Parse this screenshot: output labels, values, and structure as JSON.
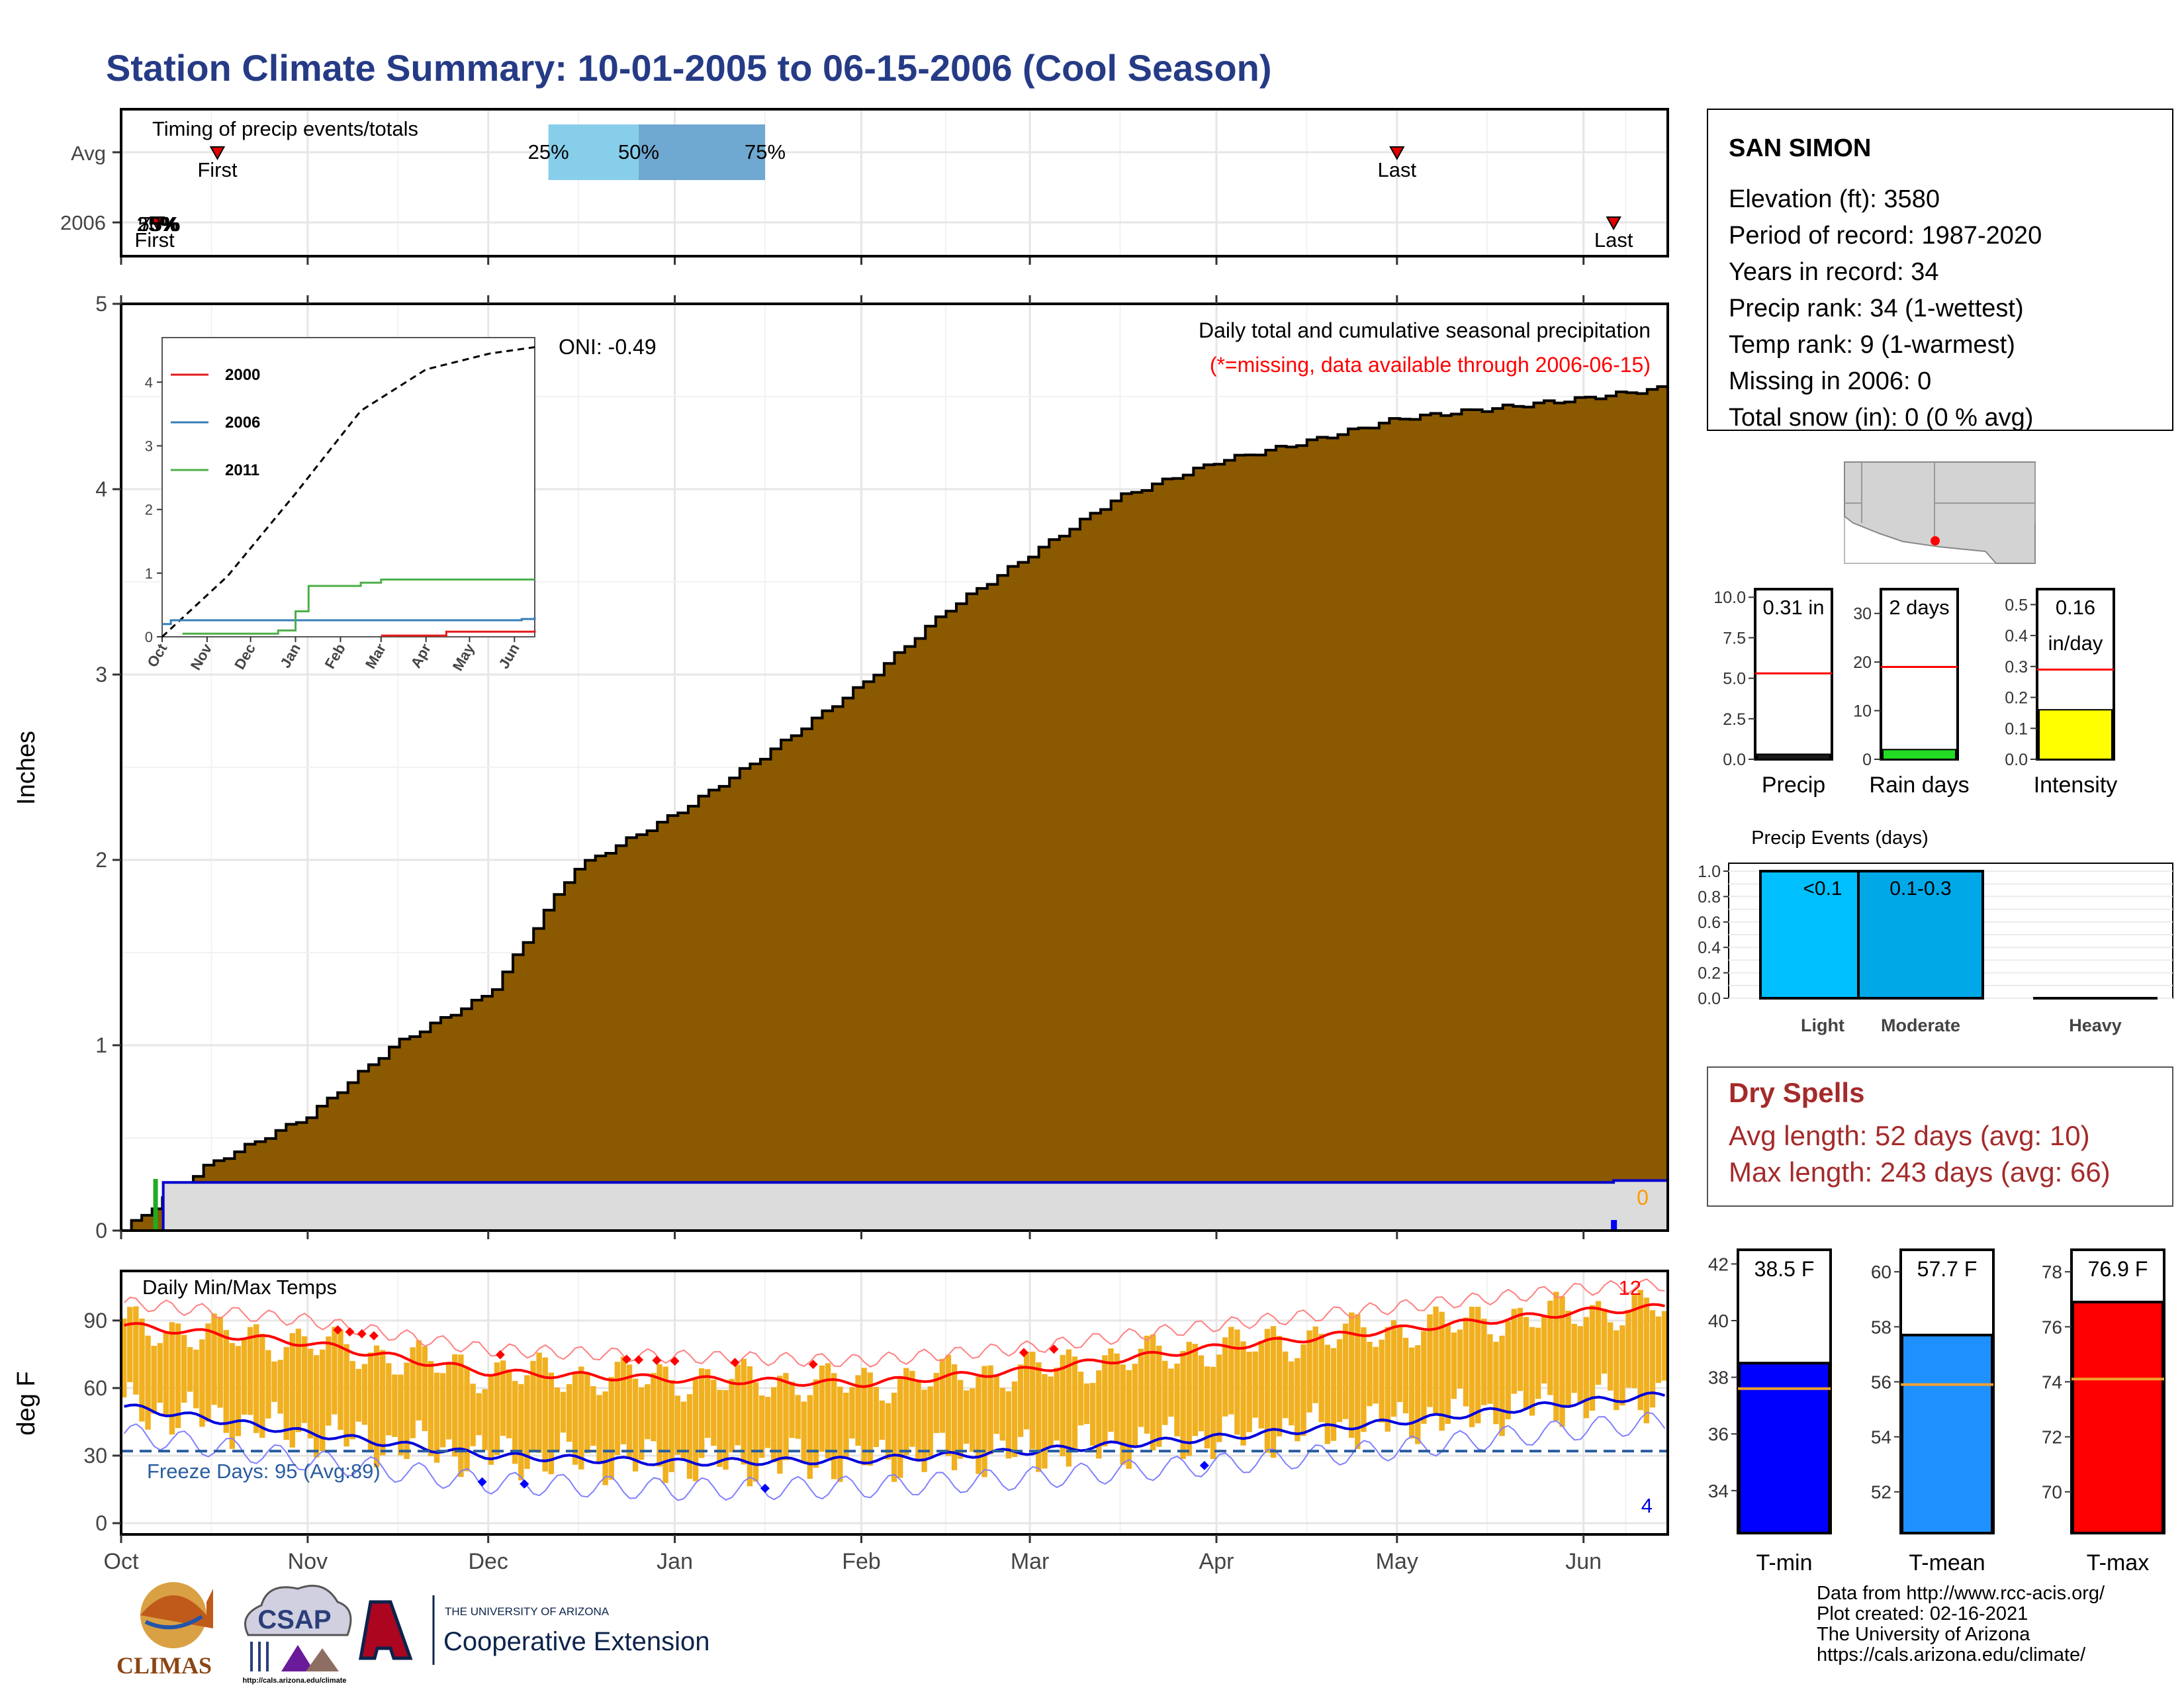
{
  "page": {
    "title": "Station Climate Summary: 10-01-2005 to 06-15-2006 (Cool Season)"
  },
  "timing_panel": {
    "title": "Timing of precip events/totals",
    "rows": [
      "Avg",
      "2006"
    ],
    "avg_quartiles": {
      "q25": "25%",
      "q50": "50%",
      "q75": "75%",
      "q25_date": "2005-12-11",
      "q50_date": "2005-12-26",
      "q75_date": "2006-01-16"
    },
    "avg_first": {
      "label": "First",
      "date": "2005-10-17"
    },
    "avg_last": {
      "label": "Last",
      "date": "2006-05-01"
    },
    "yr_first": {
      "label": "First",
      "date": "2005-10-07"
    },
    "yr_last": {
      "label": "Last",
      "date": "2006-06-06"
    },
    "yr_overlap_label": "25%",
    "yr_overlap_label2": "50%",
    "yr_overlap_label3": "75%",
    "colors": {
      "light": "#87ceeb",
      "dark": "#6fa8d0",
      "marker": "#e00000"
    }
  },
  "main_panel": {
    "ylabel": "Inches",
    "y_ticks": [
      "0",
      "1",
      "2",
      "3",
      "4",
      "5"
    ],
    "annotation_title": "Daily total and cumulative seasonal precipitation",
    "annotation_missing": "(*=missing, data available through 2006-06-15)",
    "oni": "ONI: -0.49",
    "missing_count": "0",
    "colors": {
      "avg_fill": "#8b5a00",
      "year_fill": "#dcdcdc",
      "year_line": "#0000cc",
      "missing": "#ff9900"
    }
  },
  "inset_panel": {
    "legend": [
      {
        "name": "2000",
        "color": "#e41a1c"
      },
      {
        "name": "2006",
        "color": "#377eb8"
      },
      {
        "name": "2011",
        "color": "#4daf4a"
      }
    ],
    "x_ticks": [
      "Oct",
      "Nov",
      "Dec",
      "Jan",
      "Feb",
      "Mar",
      "Apr",
      "May",
      "Jun"
    ],
    "y_ticks": [
      "0",
      "1",
      "2",
      "3",
      "4"
    ]
  },
  "temp_panel": {
    "ylabel": "deg F",
    "title": "Daily Min/Max Temps",
    "y_ticks": [
      "0",
      "30",
      "60",
      "90"
    ],
    "freeze_label": "Freeze Days: 95 (Avg:89)",
    "hot_count": "12",
    "cold_count": "4",
    "x_ticks": [
      "Oct",
      "Nov",
      "Dec",
      "Jan",
      "Feb",
      "Mar",
      "Apr",
      "May",
      "Jun"
    ],
    "colors": {
      "bars": "#f0b020",
      "max_avg": "#ff0000",
      "min_avg": "#0000dd",
      "freeze": "#2a5d9f"
    }
  },
  "station_box": {
    "name": "SAN SIMON",
    "lines": [
      "Elevation (ft): 3580",
      "Period of record: 1987-2020",
      "Years in record: 34",
      "Precip rank: 34 (1-wettest)",
      "Temp rank: 9 (1-warmest)",
      "Missing in 2006: 0",
      "Total snow (in): 0 (0 % avg)"
    ]
  },
  "mini_precip": [
    {
      "label": "Precip",
      "value_text": "0.31 in",
      "value_text2": "",
      "ticks": [
        "0.0",
        "2.5",
        "5.0",
        "7.5",
        "10.0"
      ],
      "ymax": 10.5,
      "value": 0.31,
      "avg": 5.3,
      "color": "#1a1a1a"
    },
    {
      "label": "Rain days",
      "value_text": "2 days",
      "value_text2": "",
      "ticks": [
        "0",
        "10",
        "20",
        "30"
      ],
      "ymax": 35,
      "value": 2,
      "avg": 19,
      "color": "#22dd22"
    },
    {
      "label": "Intensity",
      "value_text": "0.16",
      "value_text2": "in/day",
      "ticks": [
        "0.0",
        "0.1",
        "0.2",
        "0.3",
        "0.4",
        "0.5"
      ],
      "ymax": 0.55,
      "value": 0.16,
      "avg": 0.29,
      "color": "#ffff00"
    }
  ],
  "precip_events": {
    "title": "Precip Events (days)",
    "y_ticks": [
      "0.0",
      "0.2",
      "0.4",
      "0.6",
      "0.8",
      "1.0"
    ],
    "categories": [
      "Light",
      "Moderate",
      "Heavy"
    ],
    "bar_labels": [
      "<0.1",
      "0.1-0.3",
      ""
    ],
    "values": [
      1.0,
      1.0,
      0.0
    ],
    "colors": [
      "#00bfff",
      "#00a8e8",
      "#000000"
    ]
  },
  "dry_spells": {
    "title": "Dry Spells",
    "avg_line": "Avg length: 52 days (avg: 10)",
    "max_line": "Max length: 243 days (avg: 66)",
    "color": "#a52a2a"
  },
  "temp_bars": [
    {
      "label": "T-min",
      "value_text": "38.5 F",
      "ticks": [
        "34",
        "36",
        "38",
        "40",
        "42"
      ],
      "ymin": 32.5,
      "ymax": 42.5,
      "value": 38.5,
      "avg": 37.6,
      "color": "#0000ff"
    },
    {
      "label": "T-mean",
      "value_text": "57.7 F",
      "ticks": [
        "52",
        "54",
        "56",
        "58",
        "60"
      ],
      "ymin": 50.5,
      "ymax": 60.8,
      "value": 57.7,
      "avg": 55.9,
      "color": "#1e90ff"
    },
    {
      "label": "T-max",
      "value_text": "76.9 F",
      "ticks": [
        "70",
        "72",
        "74",
        "76",
        "78"
      ],
      "ymin": 68.5,
      "ymax": 78.8,
      "value": 76.9,
      "avg": 74.1,
      "color": "#ff0000"
    }
  ],
  "footer": {
    "lines": [
      "Data from http://www.rcc-acis.org/",
      "Plot created: 02-16-2021",
      "The University of Arizona",
      "https://cals.arizona.edu/climate/"
    ]
  },
  "logos": {
    "climas": "CLIMAS",
    "csap": "CSAP",
    "csap_url": "http://cals.arizona.edu/climate",
    "ua_small": "THE UNIVERSITY OF ARIZONA",
    "coop": "Cooperative Extension"
  },
  "chart_data": [
    {
      "type": "area",
      "title": "Daily total and cumulative seasonal precipitation",
      "ylabel": "Inches",
      "ylim": [
        0,
        5
      ],
      "x_range": [
        "2005-10-01",
        "2006-06-15"
      ],
      "series": [
        {
          "name": "Avg",
          "x": [
            "2005-10-01",
            "2005-10-15",
            "2005-11-01",
            "2005-11-15",
            "2005-12-01",
            "2005-12-15",
            "2006-01-01",
            "2006-01-15",
            "2006-02-01",
            "2006-02-15",
            "2006-03-01",
            "2006-03-15",
            "2006-04-01",
            "2006-04-15",
            "2006-05-01",
            "2006-05-15",
            "2006-06-01",
            "2006-06-15"
          ],
          "values": [
            0.0,
            0.35,
            0.62,
            1.0,
            1.28,
            1.95,
            2.25,
            2.55,
            2.95,
            3.35,
            3.65,
            3.95,
            4.15,
            4.25,
            4.38,
            4.43,
            4.49,
            4.55
          ]
        },
        {
          "name": "2006",
          "x": [
            "2005-10-01",
            "2005-10-07",
            "2005-10-08",
            "2006-06-06",
            "2006-06-15"
          ],
          "values": [
            0.0,
            0.0,
            0.26,
            0.27,
            0.31
          ]
        }
      ]
    },
    {
      "type": "line",
      "title": "",
      "x_ticks": [
        "Oct",
        "Nov",
        "Dec",
        "Jan",
        "Feb",
        "Mar",
        "Apr",
        "May",
        "Jun"
      ],
      "ylim": [
        0,
        4.7
      ],
      "series": [
        {
          "name": "",
          "x": [
            "2005-10-01",
            "2005-11-15",
            "2006-01-01",
            "2006-02-15",
            "2006-04-01",
            "2006-05-15",
            "2006-06-15"
          ],
          "values": [
            0.0,
            0.95,
            2.25,
            3.55,
            4.2,
            4.45,
            4.55
          ]
        },
        {
          "name": "2000",
          "x": [
            "2006-03-01",
            "2006-04-15",
            "2006-06-15"
          ],
          "values": [
            0.02,
            0.08,
            0.1
          ]
        },
        {
          "name": "2006",
          "x": [
            "2005-10-01",
            "2005-10-07",
            "2006-06-06",
            "2006-06-15"
          ],
          "values": [
            0.2,
            0.26,
            0.28,
            0.31
          ]
        },
        {
          "name": "2011",
          "x": [
            "2005-10-15",
            "2005-12-20",
            "2006-01-01",
            "2006-01-10",
            "2006-02-15",
            "2006-03-01",
            "2006-06-15"
          ],
          "values": [
            0.05,
            0.1,
            0.4,
            0.8,
            0.85,
            0.9,
            0.9
          ]
        }
      ]
    },
    {
      "type": "bar",
      "title": "Daily Min/Max Temps",
      "ylabel": "deg F",
      "ylim": [
        -5,
        112
      ],
      "x_range": [
        "2005-10-01",
        "2006-06-15"
      ],
      "series": [
        {
          "name": "",
          "x": [
            "2005-10-01",
            "2005-11-01",
            "2005-12-01",
            "2006-01-01",
            "2006-02-01",
            "2006-03-01",
            "2006-04-01",
            "2006-05-01",
            "2006-06-01",
            "2006-06-15"
          ],
          "values": [
            88,
            80,
            67,
            64,
            62,
            68,
            78,
            86,
            94,
            96
          ]
        },
        {
          "name": "",
          "x": [
            "2005-10-01",
            "2005-11-01",
            "2005-12-01",
            "2006-01-01",
            "2006-02-01",
            "2006-03-01",
            "2006-04-01",
            "2006-05-01",
            "2006-06-01",
            "2006-06-15"
          ],
          "values": [
            52,
            40,
            30,
            27,
            28,
            32,
            38,
            45,
            54,
            57
          ]
        }
      ],
      "freeze_line": 32
    },
    {
      "type": "bar",
      "title": "Precip Events (days)",
      "categories": [
        "Light",
        "Moderate",
        "Heavy"
      ],
      "values": [
        1.0,
        1.0,
        0.0
      ],
      "ylim": [
        0,
        1.0
      ]
    }
  ]
}
